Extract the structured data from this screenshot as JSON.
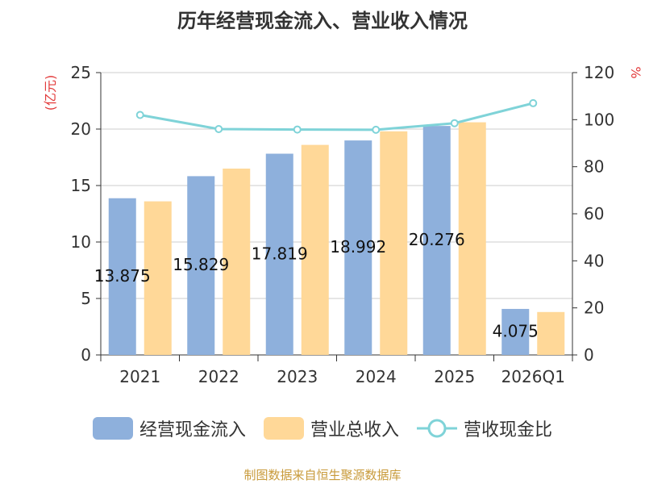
{
  "title": "历年经营现金流入、营业收入情况",
  "footer": "制图数据来自恒生聚源数据库",
  "chart_data": {
    "type": "bar",
    "categories": [
      "2021",
      "2022",
      "2023",
      "2024",
      "2025",
      "2026Q1"
    ],
    "series": [
      {
        "name": "经营现金流入",
        "values": [
          13.875,
          15.829,
          17.819,
          18.992,
          20.276,
          4.075
        ],
        "color": "#8eb0dc",
        "axis": "left"
      },
      {
        "name": "营业总收入",
        "values": [
          13.6,
          16.5,
          18.6,
          19.8,
          20.6,
          3.8
        ],
        "color": "#ffd898",
        "axis": "left"
      },
      {
        "name": "营收现金比",
        "type": "line",
        "values": [
          102,
          96,
          95.8,
          95.7,
          98.5,
          107
        ],
        "color": "#7fd3d8",
        "axis": "right"
      }
    ],
    "data_labels": [
      "13.875",
      "15.829",
      "17.819",
      "18.992",
      "20.276",
      "4.075"
    ],
    "y_left": {
      "label": "(亿元)",
      "ylim": [
        0,
        25
      ],
      "ticks": [
        "0",
        "5",
        "10",
        "15",
        "20",
        "25"
      ]
    },
    "y_right": {
      "label": "%",
      "ylim": [
        0,
        120
      ],
      "ticks": [
        "0",
        "20",
        "40",
        "60",
        "80",
        "100",
        "120"
      ]
    },
    "grid": true,
    "legend_position": "bottom"
  }
}
